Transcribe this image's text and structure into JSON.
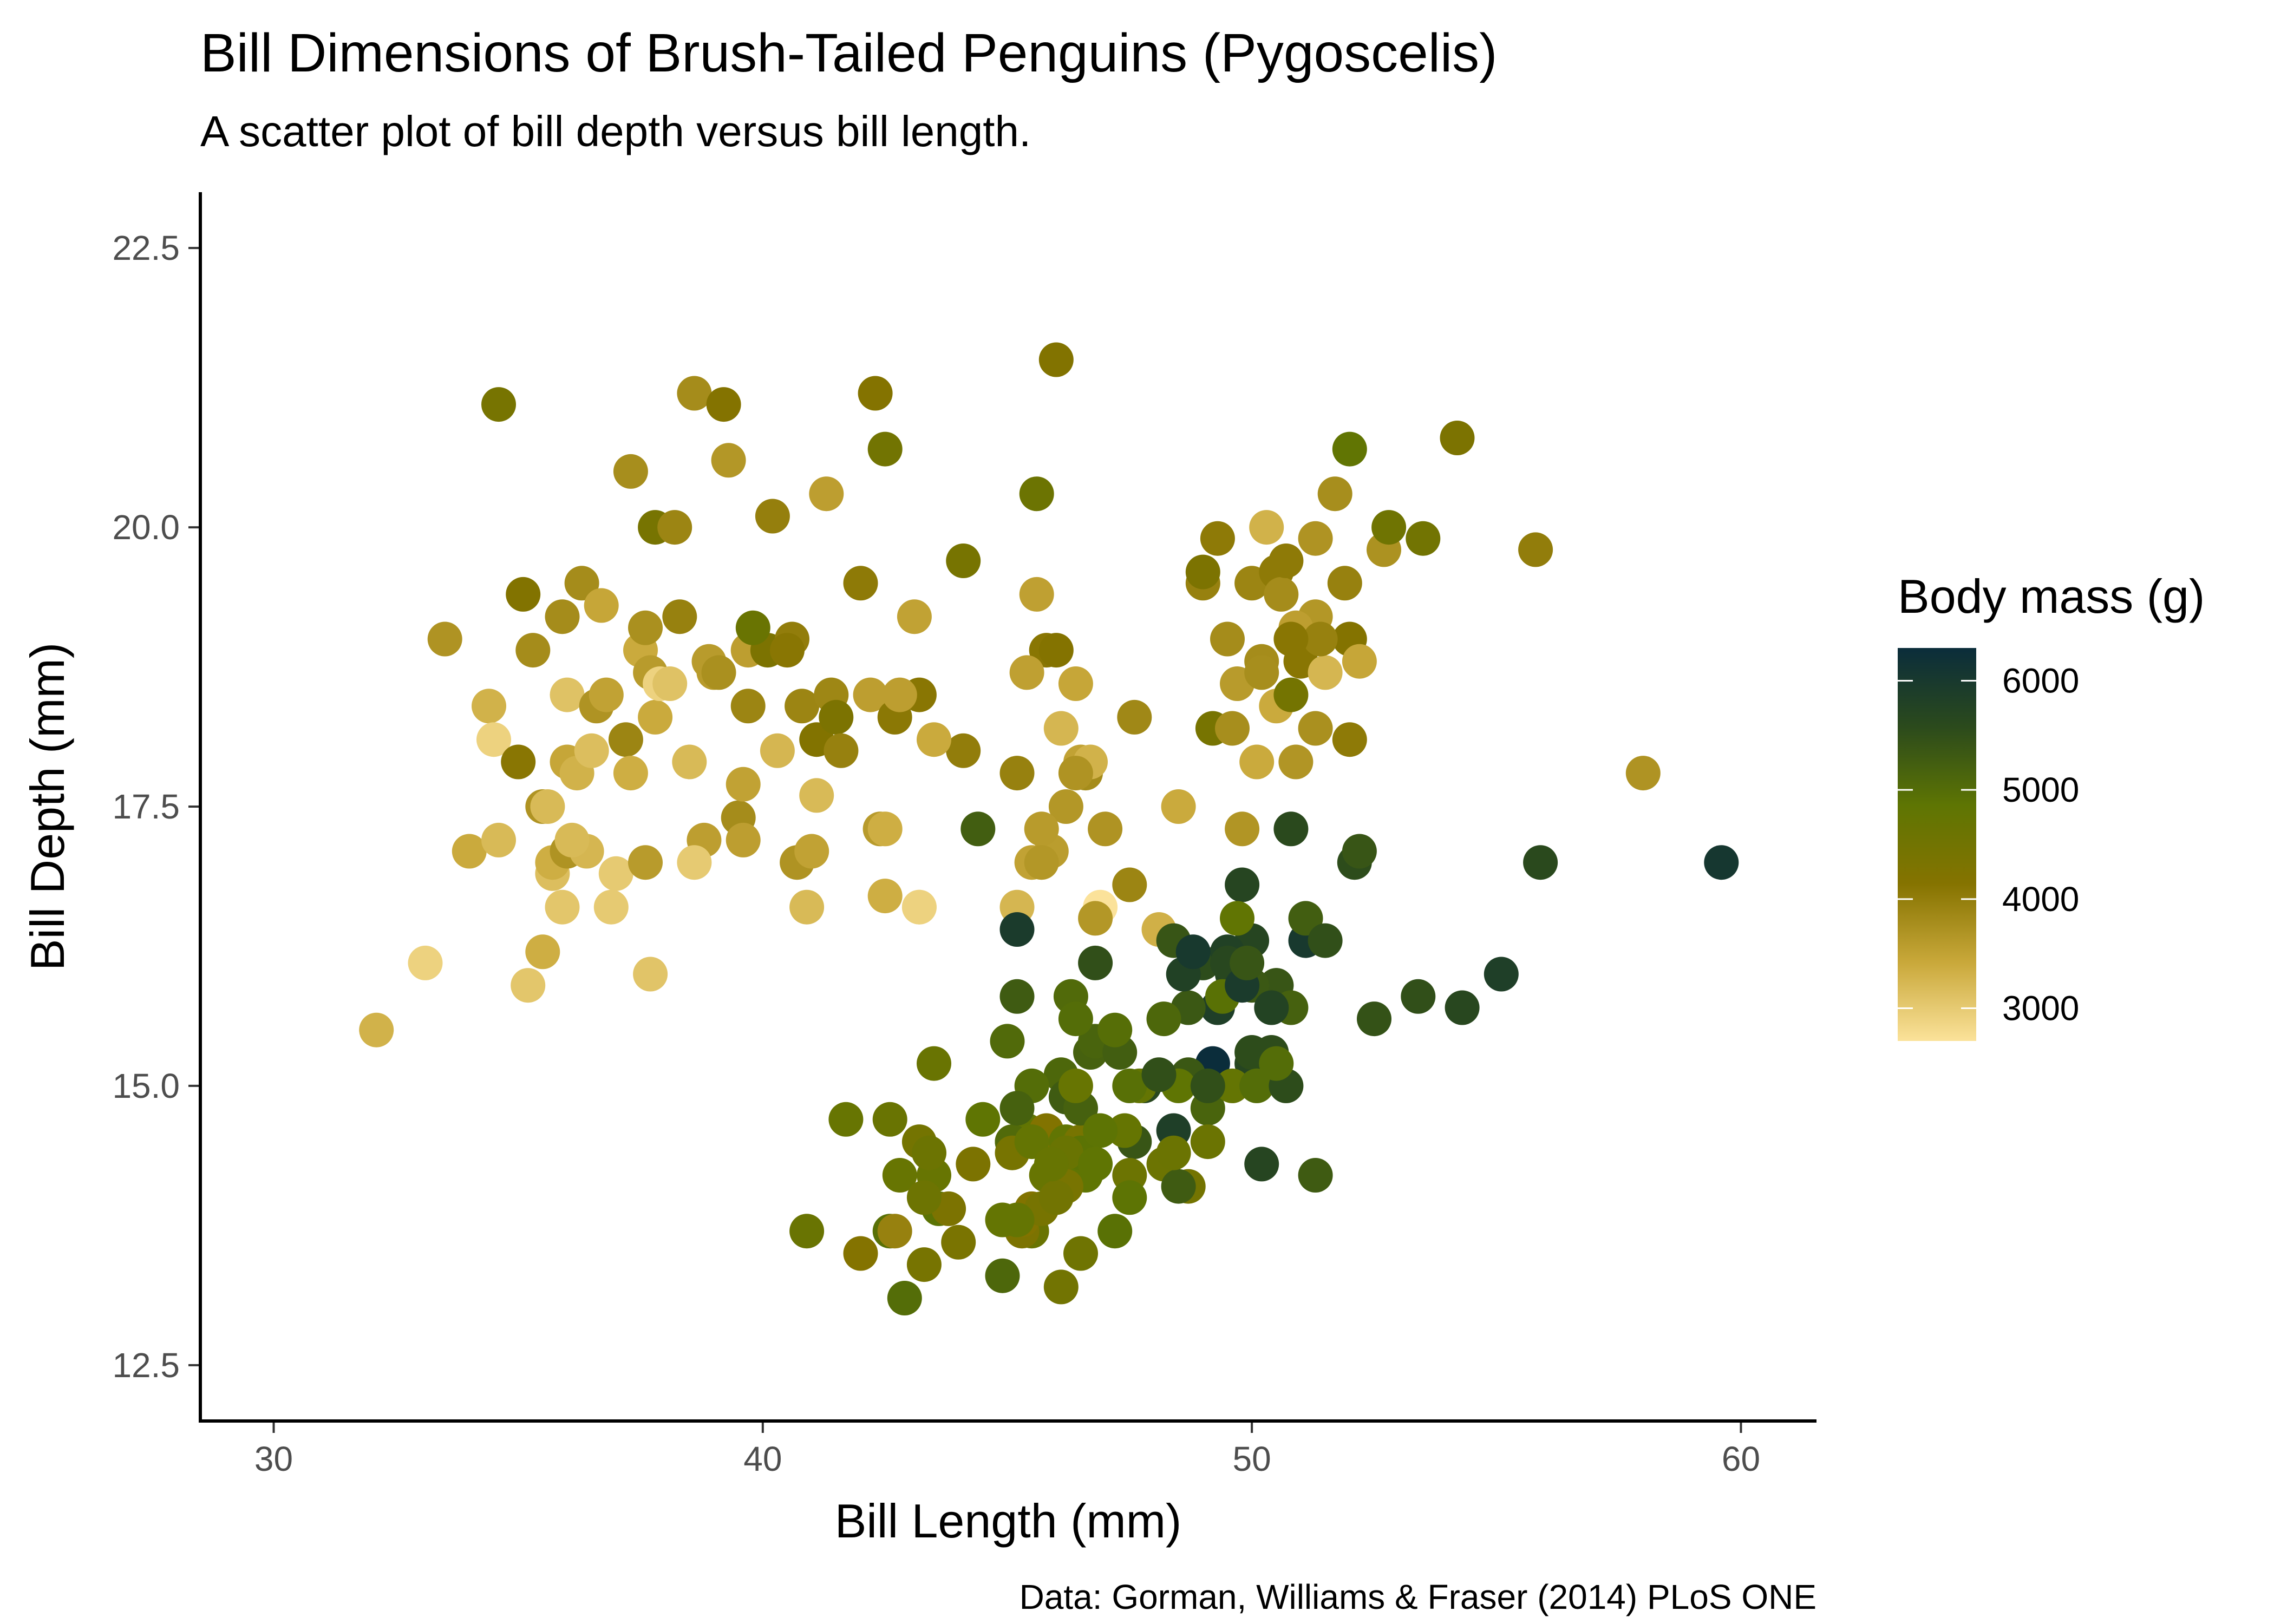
{
  "chart_data": {
    "type": "scatter",
    "title": "Bill Dimensions of Brush-Tailed Penguins (Pygoscelis)",
    "subtitle": "A scatter plot of bill depth versus bill length.",
    "xlabel": "Bill Length (mm)",
    "ylabel": "Bill Depth (mm)",
    "caption": "Data: Gorman, Williams & Fraser (2014) PLoS ONE",
    "xlim": [
      28.5,
      61.6
    ],
    "ylim": [
      12,
      23
    ],
    "x_ticks": [
      30,
      40,
      50,
      60
    ],
    "x_tick_labels": [
      "30",
      "40",
      "50",
      "60"
    ],
    "y_ticks": [
      12.5,
      15,
      17.5,
      20,
      22.5
    ],
    "y_tick_labels": [
      "12.5",
      "15.0",
      "17.5",
      "20.0",
      "22.5"
    ],
    "grid": false,
    "legend": {
      "title": "Body mass (g)",
      "placement": "right",
      "range": [
        2700,
        6300
      ],
      "ticks": [
        3000,
        4000,
        5000,
        6000
      ],
      "tick_labels": [
        "3000",
        "4000",
        "5000",
        "6000"
      ],
      "colors": [
        "#fbe29a",
        "#c9a83a",
        "#857300",
        "#5e7503",
        "#2b4a1c",
        "#0b2d3b"
      ]
    },
    "points": [
      [
        32.1,
        15.5,
        3300
      ],
      [
        33.1,
        16.1,
        2900
      ],
      [
        33.5,
        19.0,
        3700
      ],
      [
        34.0,
        17.1,
        3400
      ],
      [
        34.4,
        18.4,
        3300
      ],
      [
        34.5,
        18.1,
        2900
      ],
      [
        34.6,
        21.1,
        4400
      ],
      [
        34.6,
        17.2,
        3200
      ],
      [
        35.0,
        17.9,
        4100
      ],
      [
        35.1,
        19.4,
        4200
      ],
      [
        35.2,
        15.9,
        3050
      ],
      [
        35.3,
        18.9,
        3800
      ],
      [
        35.5,
        17.5,
        3700
      ],
      [
        35.6,
        17.5,
        3200
      ],
      [
        35.7,
        16.9,
        3150
      ],
      [
        35.7,
        17.0,
        3350
      ],
      [
        35.9,
        16.6,
        3050
      ],
      [
        35.9,
        19.2,
        3800
      ],
      [
        36.0,
        17.9,
        3450
      ],
      [
        36.0,
        18.5,
        3100
      ],
      [
        36.0,
        17.1,
        3700
      ],
      [
        36.2,
        17.8,
        3300
      ],
      [
        36.3,
        19.5,
        3800
      ],
      [
        36.4,
        17.1,
        3250
      ],
      [
        36.5,
        18.0,
        3150
      ],
      [
        36.6,
        18.4,
        3700
      ],
      [
        36.7,
        19.3,
        3450
      ],
      [
        36.8,
        18.5,
        3500
      ],
      [
        37.0,
        16.9,
        3000
      ],
      [
        37.2,
        18.1,
        3900
      ],
      [
        37.3,
        17.8,
        3350
      ],
      [
        37.3,
        20.5,
        3775
      ],
      [
        37.5,
        18.9,
        3400
      ],
      [
        37.6,
        17.0,
        3600
      ],
      [
        37.7,
        18.7,
        3600
      ],
      [
        37.8,
        18.3,
        3400
      ],
      [
        37.8,
        20.0,
        4400
      ],
      [
        37.9,
        18.6,
        2900
      ],
      [
        38.1,
        18.6,
        3100
      ],
      [
        38.2,
        20.0,
        3900
      ],
      [
        38.6,
        21.2,
        3800
      ],
      [
        38.8,
        17.2,
        3550
      ],
      [
        38.9,
        18.8,
        3600
      ],
      [
        39.0,
        18.7,
        3600
      ],
      [
        39.1,
        18.7,
        3750
      ],
      [
        39.2,
        21.1,
        4150
      ],
      [
        39.3,
        20.6,
        3650
      ],
      [
        39.5,
        17.4,
        3800
      ],
      [
        39.6,
        17.7,
        3500
      ],
      [
        39.7,
        18.9,
        3550
      ],
      [
        40.1,
        18.9,
        4300
      ],
      [
        40.2,
        20.1,
        3975
      ],
      [
        40.3,
        18.0,
        3250
      ],
      [
        40.6,
        19.0,
        4000
      ],
      [
        40.8,
        18.4,
        3900
      ],
      [
        40.9,
        16.6,
        3200
      ],
      [
        41.1,
        18.1,
        4200
      ],
      [
        41.1,
        17.6,
        3200
      ],
      [
        41.3,
        20.3,
        3550
      ],
      [
        41.4,
        18.5,
        3875
      ],
      [
        41.5,
        18.3,
        4300
      ],
      [
        41.6,
        18.0,
        3950
      ],
      [
        42.0,
        19.5,
        4050
      ],
      [
        42.2,
        18.5,
        3550
      ],
      [
        42.3,
        21.2,
        4150
      ],
      [
        42.5,
        20.7,
        4500
      ],
      [
        42.7,
        18.3,
        4075
      ],
      [
        43.1,
        19.2,
        3500
      ],
      [
        43.2,
        18.5,
        4100
      ],
      [
        43.2,
        16.6,
        2900
      ],
      [
        44.1,
        19.7,
        4400
      ],
      [
        44.1,
        18.0,
        4000
      ],
      [
        45.6,
        20.3,
        4600
      ],
      [
        46.0,
        21.5,
        4200
      ],
      [
        45.8,
        18.9,
        4100
      ],
      [
        38.5,
        17.9,
        3200
      ],
      [
        36.9,
        16.6,
        3000
      ],
      [
        39.6,
        17.2,
        3550
      ],
      [
        40.7,
        17.0,
        3700
      ],
      [
        37.6,
        19.1,
        3750
      ],
      [
        38.3,
        19.2,
        3950
      ],
      [
        41.0,
        17.1,
        3500
      ],
      [
        35.5,
        16.2,
        3350
      ],
      [
        36.1,
        17.2,
        3200
      ],
      [
        38.6,
        17.0,
        3000
      ],
      [
        39.8,
        19.1,
        4650
      ],
      [
        40.5,
        18.9,
        4100
      ],
      [
        37.7,
        16.0,
        3075
      ],
      [
        39.7,
        18.4,
        3900
      ],
      [
        42.8,
        18.5,
        3550
      ],
      [
        46.5,
        17.9,
        3500
      ],
      [
        50.0,
        19.5,
        3900
      ],
      [
        51.3,
        19.2,
        3650
      ],
      [
        45.4,
        18.7,
        3525
      ],
      [
        52.7,
        19.8,
        3725
      ],
      [
        45.2,
        17.8,
        3950
      ],
      [
        46.1,
        18.2,
        3250
      ],
      [
        51.3,
        18.2,
        3750
      ],
      [
        46.0,
        18.9,
        4150
      ],
      [
        51.3,
        19.9,
        3700
      ],
      [
        46.6,
        17.8,
        3800
      ],
      [
        51.7,
        20.3,
        3775
      ],
      [
        47.0,
        17.3,
        3700
      ],
      [
        52.0,
        18.1,
        4050
      ],
      [
        45.9,
        17.1,
        3575
      ],
      [
        50.5,
        19.6,
        4050
      ],
      [
        50.3,
        20.0,
        3300
      ],
      [
        58.0,
        17.8,
        3700
      ],
      [
        46.4,
        18.6,
        3450
      ],
      [
        49.2,
        18.2,
        4400
      ],
      [
        42.4,
        17.3,
        3600
      ],
      [
        48.5,
        17.5,
        3400
      ],
      [
        43.2,
        16.6,
        2900
      ],
      [
        50.6,
        19.4,
        3800
      ],
      [
        46.7,
        17.9,
        3300
      ],
      [
        52.0,
        19.0,
        4150
      ],
      [
        50.5,
        18.4,
        3400
      ],
      [
        49.5,
        19.0,
        3800
      ],
      [
        46.4,
        17.8,
        3700
      ],
      [
        52.8,
        20.0,
        4550
      ],
      [
        54.2,
        20.8,
        4300
      ],
      [
        42.5,
        16.7,
        3350
      ],
      [
        51.0,
        18.8,
        4100
      ],
      [
        49.7,
        18.6,
        3600
      ],
      [
        47.5,
        16.8,
        3900
      ],
      [
        47.6,
        18.3,
        3850
      ],
      [
        52.0,
        20.7,
        4800
      ],
      [
        46.9,
        16.6,
        2700
      ],
      [
        53.5,
        19.9,
        4500
      ],
      [
        49.0,
        19.5,
        3950
      ],
      [
        46.2,
        17.5,
        3650
      ],
      [
        50.9,
        19.1,
        3550
      ],
      [
        45.5,
        17.0,
        3500
      ],
      [
        50.9,
        17.9,
        3675
      ],
      [
        50.8,
        18.5,
        4450
      ],
      [
        50.1,
        17.9,
        3400
      ],
      [
        49.0,
        19.6,
        4300
      ],
      [
        51.5,
        18.7,
        3250
      ],
      [
        49.8,
        17.3,
        3675
      ],
      [
        48.1,
        16.4,
        3325
      ],
      [
        51.4,
        19.0,
        3950
      ],
      [
        45.7,
        17.3,
        3600
      ],
      [
        50.7,
        19.7,
        4050
      ],
      [
        42.5,
        17.3,
        3350
      ],
      [
        52.2,
        18.8,
        3450
      ],
      [
        45.2,
        16.6,
        3250
      ],
      [
        49.3,
        19.9,
        4050
      ],
      [
        50.2,
        18.8,
        3800
      ],
      [
        45.6,
        19.4,
        3525
      ],
      [
        51.9,
        19.5,
        3950
      ],
      [
        46.8,
        16.5,
        3650
      ],
      [
        45.7,
        17.0,
        3650
      ],
      [
        55.8,
        19.8,
        4000
      ],
      [
        43.5,
        18.1,
        3400
      ],
      [
        49.6,
        18.2,
        3775
      ],
      [
        50.8,
        19.0,
        4100
      ],
      [
        50.2,
        18.7,
        3775
      ],
      [
        46.1,
        13.2,
        4500
      ],
      [
        50.0,
        16.3,
        5700
      ],
      [
        48.7,
        14.1,
        4450
      ],
      [
        50.0,
        15.2,
        5700
      ],
      [
        47.6,
        14.5,
        5400
      ],
      [
        46.5,
        13.5,
        4550
      ],
      [
        45.4,
        14.6,
        4800
      ],
      [
        46.7,
        15.3,
        5200
      ],
      [
        43.3,
        13.4,
        4400
      ],
      [
        46.8,
        15.4,
        5150
      ],
      [
        40.9,
        13.7,
        4650
      ],
      [
        49.0,
        16.1,
        5550
      ],
      [
        45.5,
        13.7,
        4650
      ],
      [
        48.4,
        14.6,
        5850
      ],
      [
        45.8,
        14.6,
        4200
      ],
      [
        49.3,
        15.7,
        5850
      ],
      [
        42.0,
        13.5,
        4150
      ],
      [
        49.2,
        15.2,
        6300
      ],
      [
        46.2,
        14.5,
        4800
      ],
      [
        48.7,
        15.1,
        5350
      ],
      [
        50.2,
        14.3,
        5700
      ],
      [
        45.1,
        14.5,
        5000
      ],
      [
        46.5,
        14.5,
        4400
      ],
      [
        46.3,
        15.8,
        5050
      ],
      [
        42.9,
        13.1,
        5000
      ],
      [
        46.1,
        15.1,
        5100
      ],
      [
        47.8,
        15.0,
        5650
      ],
      [
        48.2,
        14.3,
        4600
      ],
      [
        50.0,
        15.3,
        5550
      ],
      [
        47.3,
        15.3,
        5250
      ],
      [
        42.8,
        14.2,
        4700
      ],
      [
        45.1,
        14.5,
        5050
      ],
      [
        59.6,
        17.0,
        6050
      ],
      [
        49.1,
        14.8,
        5150
      ],
      [
        48.4,
        16.3,
        5400
      ],
      [
        42.6,
        13.7,
        4950
      ],
      [
        44.4,
        17.3,
        5250
      ],
      [
        44.0,
        13.6,
        4350
      ],
      [
        48.7,
        15.7,
        5350
      ],
      [
        42.7,
        13.7,
        3950
      ],
      [
        49.6,
        16.0,
        5700
      ],
      [
        45.3,
        13.7,
        4300
      ],
      [
        49.6,
        15.0,
        4750
      ],
      [
        50.5,
        15.9,
        5550
      ],
      [
        43.6,
        13.9,
        4900
      ],
      [
        45.5,
        13.9,
        4200
      ],
      [
        50.5,
        15.9,
        5400
      ],
      [
        44.9,
        13.3,
        5100
      ],
      [
        45.2,
        15.8,
        5300
      ],
      [
        46.6,
        14.2,
        4850
      ],
      [
        48.5,
        14.1,
        5300
      ],
      [
        45.1,
        14.4,
        4400
      ],
      [
        50.1,
        15.0,
        5000
      ],
      [
        46.5,
        14.4,
        4900
      ],
      [
        45.0,
        15.4,
        5050
      ],
      [
        43.8,
        13.9,
        4300
      ],
      [
        45.5,
        15.0,
        5000
      ],
      [
        43.2,
        14.5,
        4450
      ],
      [
        50.4,
        15.3,
        5550
      ],
      [
        45.3,
        13.8,
        4200
      ],
      [
        46.2,
        14.9,
        5300
      ],
      [
        45.7,
        13.9,
        4400
      ],
      [
        54.3,
        15.7,
        5650
      ],
      [
        45.8,
        14.2,
        4700
      ],
      [
        49.8,
        16.8,
        5700
      ],
      [
        46.2,
        14.4,
        4650
      ],
      [
        49.5,
        16.2,
        5800
      ],
      [
        43.5,
        14.2,
        4700
      ],
      [
        50.7,
        15.0,
        5550
      ],
      [
        47.7,
        15.0,
        4750
      ],
      [
        46.4,
        15.6,
        5000
      ],
      [
        48.2,
        15.6,
        5100
      ],
      [
        46.5,
        14.8,
        5200
      ],
      [
        46.4,
        15.0,
        4700
      ],
      [
        48.6,
        16.0,
        5800
      ],
      [
        47.5,
        14.2,
        4600
      ],
      [
        51.1,
        16.3,
        6000
      ],
      [
        45.2,
        13.8,
        4750
      ],
      [
        45.2,
        16.4,
        5950
      ],
      [
        49.1,
        14.5,
        4625
      ],
      [
        52.5,
        15.6,
        5450
      ],
      [
        47.4,
        14.6,
        4725
      ],
      [
        50.0,
        15.9,
        5350
      ],
      [
        44.9,
        13.8,
        4750
      ],
      [
        50.8,
        17.3,
        5600
      ],
      [
        43.4,
        14.4,
        4600
      ],
      [
        51.3,
        14.2,
        5300
      ],
      [
        47.5,
        14.0,
        4875
      ],
      [
        52.1,
        17.0,
        5550
      ],
      [
        47.5,
        15.0,
        4950
      ],
      [
        52.2,
        17.1,
        5400
      ],
      [
        45.5,
        14.5,
        4750
      ],
      [
        49.5,
        16.1,
        5650
      ],
      [
        44.5,
        14.7,
        4850
      ],
      [
        50.8,
        15.7,
        5200
      ],
      [
        49.4,
        15.8,
        4925
      ],
      [
        46.9,
        14.6,
        4875
      ],
      [
        48.4,
        14.4,
        4625
      ],
      [
        51.1,
        16.5,
        5250
      ],
      [
        48.5,
        15.0,
        4850
      ],
      [
        55.9,
        17.0,
        5600
      ],
      [
        47.2,
        15.5,
        4975
      ],
      [
        49.1,
        15.0,
        5500
      ],
      [
        46.8,
        16.1,
        5500
      ],
      [
        41.7,
        14.7,
        4700
      ],
      [
        53.4,
        15.8,
        5500
      ],
      [
        43.3,
        14.0,
        4575
      ],
      [
        48.1,
        15.1,
        5500
      ],
      [
        50.5,
        15.2,
        5000
      ],
      [
        49.8,
        15.9,
        5950
      ],
      [
        43.5,
        15.2,
        4650
      ],
      [
        51.5,
        16.3,
        5500
      ],
      [
        46.2,
        14.1,
        4375
      ],
      [
        55.1,
        16.0,
        5850
      ],
      [
        48.8,
        16.2,
        6000
      ],
      [
        47.2,
        13.7,
        4925
      ],
      [
        46.8,
        14.3,
        4850
      ],
      [
        50.4,
        15.7,
        5750
      ],
      [
        45.2,
        14.8,
        5200
      ],
      [
        49.9,
        16.1,
        5400
      ],
      [
        49.7,
        16.5,
        4800
      ],
      [
        46.0,
        14.0,
        4500
      ],
      [
        44.3,
        14.3,
        4300
      ],
      [
        45.9,
        14.3,
        4700
      ],
      [
        42.6,
        14.7,
        4650
      ]
    ]
  }
}
